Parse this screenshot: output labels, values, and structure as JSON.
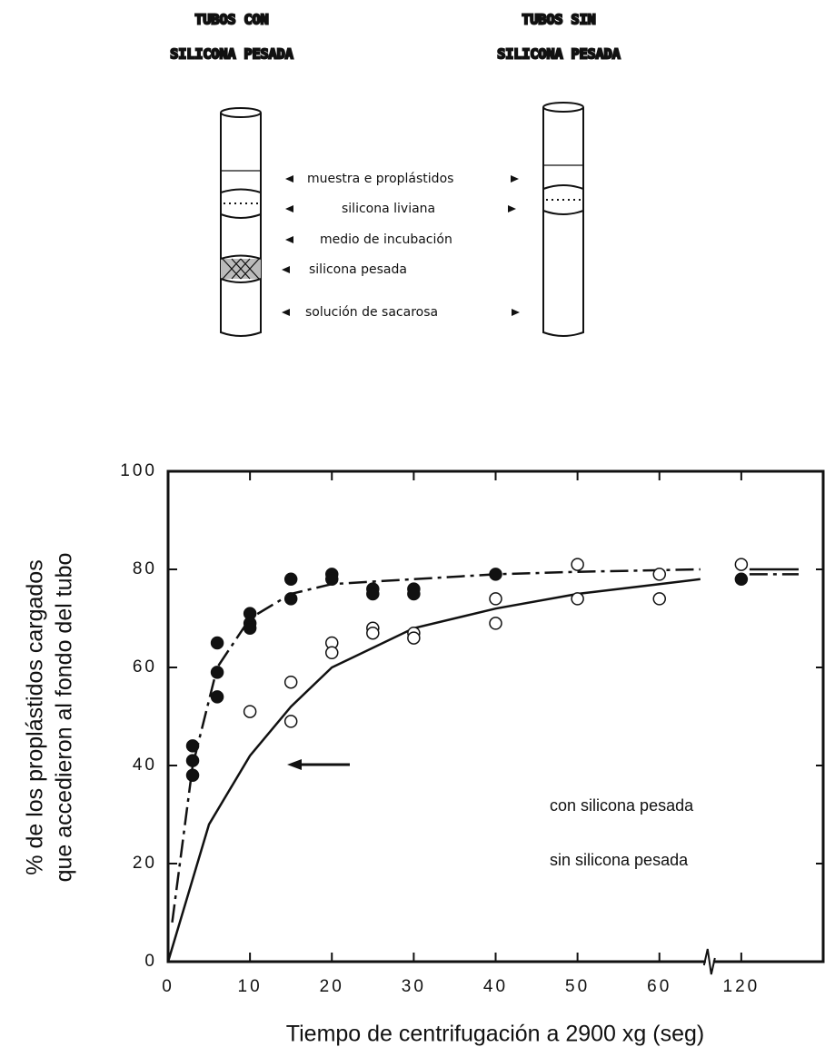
{
  "diagram": {
    "left_title": [
      "TUBOS CON",
      "SILICONA PESADA"
    ],
    "right_title": [
      "TUBOS SIN",
      "SILICONA PESADA"
    ],
    "layers": [
      "muestra e proplástidos",
      "silicona liviana",
      "medio de incubación",
      "silicona pesada",
      "solución de sacarosa"
    ]
  },
  "chart_data": {
    "type": "scatter",
    "ylabel": [
      "% de los proplástidos cargados",
      "que accedieron al fondo del tubo"
    ],
    "xlabel": "Tiempo de centrifugación a 2900 xg (seg)",
    "xlim": [
      0,
      130
    ],
    "x_break": [
      65,
      115
    ],
    "xticks": [
      0,
      10,
      20,
      30,
      40,
      50,
      60,
      120
    ],
    "ylim": [
      0,
      100
    ],
    "yticks": [
      0,
      20,
      40,
      60,
      80,
      100
    ],
    "series": [
      {
        "name": "con silicona pesada",
        "color": "#111111",
        "marker": "filled",
        "x": [
          3,
          3,
          3,
          6,
          6,
          6,
          10,
          10,
          10,
          15,
          15,
          20,
          20,
          25,
          25,
          30,
          30,
          40,
          120
        ],
        "values": [
          44,
          41,
          38,
          65,
          59,
          54,
          71,
          69,
          68,
          78,
          74,
          79,
          78,
          76,
          75,
          76,
          75,
          79,
          78
        ],
        "curve": {
          "style": "dashdot",
          "x": [
            0.5,
            3,
            6,
            10,
            15,
            20,
            30,
            40,
            50,
            65,
            null,
            121,
            127
          ],
          "values": [
            8,
            40,
            60,
            70,
            75,
            77,
            78,
            79,
            79.5,
            80,
            null,
            79,
            79
          ]
        }
      },
      {
        "name": "sin silicona pesada",
        "color": "#111111",
        "marker": "open",
        "x": [
          10,
          15,
          15,
          20,
          20,
          25,
          25,
          30,
          30,
          40,
          40,
          50,
          50,
          60,
          60,
          120
        ],
        "values": [
          51,
          57,
          49,
          65,
          63,
          68,
          67,
          67,
          66,
          74,
          69,
          81,
          74,
          79,
          74,
          81
        ],
        "curve": {
          "style": "solid",
          "x": [
            0,
            5,
            10,
            15,
            20,
            30,
            40,
            50,
            60,
            65,
            null,
            121,
            127
          ],
          "values": [
            0,
            28,
            42,
            52,
            60,
            68,
            72,
            75,
            77,
            78,
            null,
            80,
            80
          ]
        }
      }
    ]
  }
}
